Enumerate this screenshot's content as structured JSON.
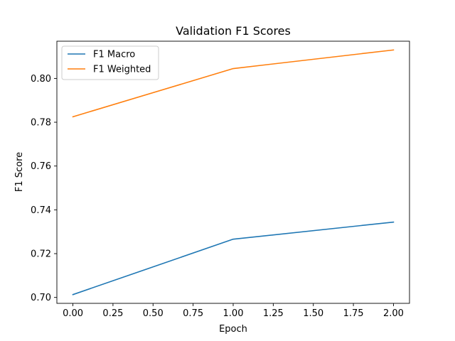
{
  "chart_data": {
    "type": "line",
    "title": "Validation F1 Scores",
    "xlabel": "Epoch",
    "ylabel": "F1 Score",
    "x": [
      0,
      1,
      2
    ],
    "series": [
      {
        "name": "F1 Macro",
        "values": [
          0.7013,
          0.7266,
          0.7344
        ],
        "color": "#1f77b4"
      },
      {
        "name": "F1 Weighted",
        "values": [
          0.7825,
          0.8045,
          0.813
        ],
        "color": "#ff7f0e"
      }
    ],
    "xlim": [
      -0.1,
      2.1
    ],
    "ylim": [
      0.6973,
      0.817
    ],
    "xticks": [
      0.0,
      0.25,
      0.5,
      0.75,
      1.0,
      1.25,
      1.5,
      1.75,
      2.0
    ],
    "xtick_labels": [
      "0.00",
      "0.25",
      "0.50",
      "0.75",
      "1.00",
      "1.25",
      "1.50",
      "1.75",
      "2.00"
    ],
    "yticks": [
      0.7,
      0.72,
      0.74,
      0.76,
      0.78,
      0.8
    ],
    "ytick_labels": [
      "0.70",
      "0.72",
      "0.74",
      "0.76",
      "0.78",
      "0.80"
    ],
    "grid": false,
    "legend_position": "top-left"
  }
}
